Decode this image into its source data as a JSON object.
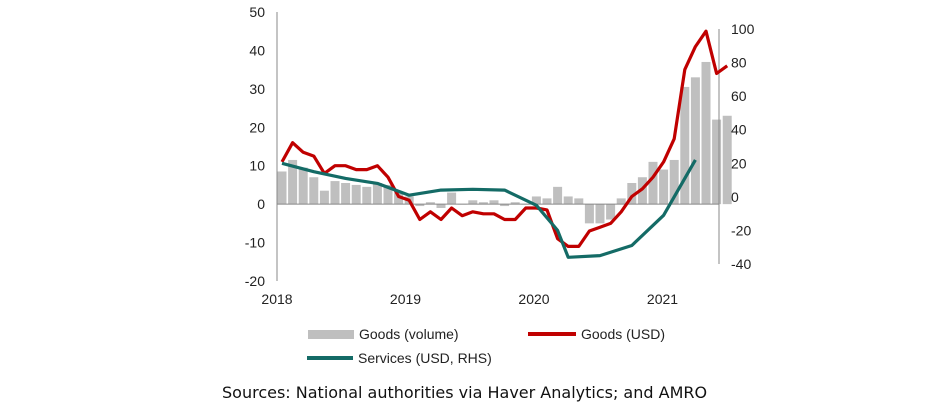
{
  "chart_data": {
    "type": "bar",
    "title": "",
    "xlabel": "",
    "ylabel": "",
    "x_tick_labels": [
      "2018",
      "2019",
      "2020",
      "2021"
    ],
    "left_axis": {
      "ylim": [
        -20,
        50
      ],
      "ticks": [
        50,
        40,
        30,
        20,
        10,
        0,
        -10,
        -20
      ]
    },
    "right_axis": {
      "ylim": [
        -40,
        100
      ],
      "ticks": [
        100,
        80,
        60,
        40,
        20,
        0,
        -20,
        -40
      ]
    },
    "grid": false,
    "legend_position": "bottom",
    "months": [
      "2018-01",
      "2018-02",
      "2018-03",
      "2018-04",
      "2018-05",
      "2018-06",
      "2018-07",
      "2018-08",
      "2018-09",
      "2018-10",
      "2018-11",
      "2018-12",
      "2019-01",
      "2019-02",
      "2019-03",
      "2019-04",
      "2019-05",
      "2019-06",
      "2019-07",
      "2019-08",
      "2019-09",
      "2019-10",
      "2019-11",
      "2019-12",
      "2020-01",
      "2020-02",
      "2020-03",
      "2020-04",
      "2020-05",
      "2020-06",
      "2020-07",
      "2020-08",
      "2020-09",
      "2020-10",
      "2020-11",
      "2020-12",
      "2021-01",
      "2021-02",
      "2021-03",
      "2021-04",
      "2021-05",
      "2021-06",
      "2021-07"
    ],
    "series": [
      {
        "name": "Goods (volume)",
        "type": "bar",
        "axis": "left",
        "color": "#bfbfbf",
        "values": [
          8.5,
          11.5,
          9.5,
          7,
          3.5,
          6,
          5.5,
          5,
          4.5,
          5.5,
          5,
          3,
          2,
          -0.5,
          0.5,
          -1,
          3,
          0,
          1,
          0.5,
          1,
          -0.5,
          0.5,
          0,
          2,
          1.5,
          4.5,
          2,
          1.5,
          -5,
          -5,
          -4,
          1.5,
          5.5,
          7,
          11,
          9,
          11.5,
          30.5,
          33,
          37,
          22,
          23
        ]
      },
      {
        "name": "Goods (USD)",
        "type": "line",
        "axis": "left",
        "color": "#c00000",
        "values": [
          11,
          16,
          13.5,
          12.5,
          8,
          10,
          10,
          9,
          9,
          10,
          7,
          2,
          1,
          -4,
          -2,
          -4,
          -1,
          -3,
          -2,
          -2.5,
          -2.5,
          -4,
          -4,
          -1,
          -1,
          -1.5,
          -9,
          -11,
          -11,
          -7,
          -6,
          -5,
          -2,
          2,
          4,
          7,
          11,
          17,
          35,
          41,
          45,
          34,
          36
        ]
      },
      {
        "name": "Services (USD, RHS)",
        "type": "line",
        "axis": "right",
        "color": "#146b66",
        "points": [
          [
            "2018-01",
            20
          ],
          [
            "2018-04",
            15
          ],
          [
            "2018-07",
            11
          ],
          [
            "2018-10",
            8
          ],
          [
            "2019-01",
            1
          ],
          [
            "2019-04",
            4
          ],
          [
            "2019-07",
            4.5
          ],
          [
            "2019-10",
            4
          ],
          [
            "2020-01",
            -5
          ],
          [
            "2020-03",
            -20
          ],
          [
            "2020-04",
            -36
          ],
          [
            "2020-07",
            -35
          ],
          [
            "2020-10",
            -29
          ],
          [
            "2021-01",
            -11
          ],
          [
            "2021-04",
            22
          ]
        ]
      }
    ]
  },
  "legend": {
    "items": [
      {
        "label": "Goods (volume)",
        "color": "#bfbfbf"
      },
      {
        "label": "Goods (USD)",
        "color": "#c00000"
      },
      {
        "label": "Services (USD, RHS)",
        "color": "#146b66"
      }
    ]
  },
  "source": "Sources: National authorities via Haver Analytics; and AMRO"
}
